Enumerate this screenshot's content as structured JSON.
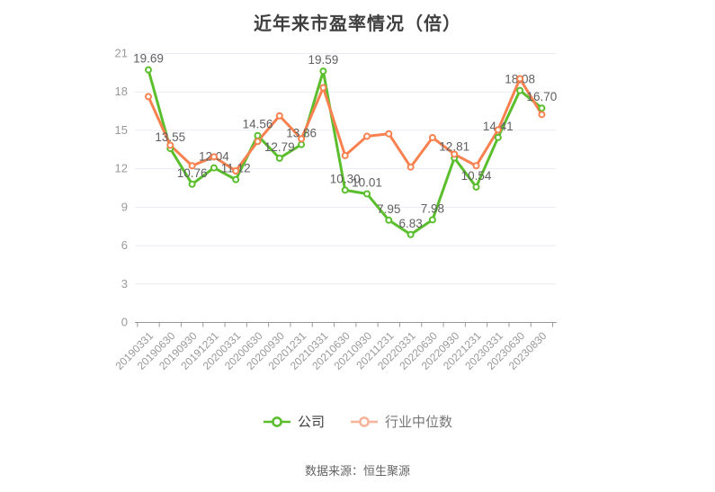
{
  "title": "近年来市盈率情况（倍）",
  "footer": {
    "source_label": "数据来源：恒生聚源"
  },
  "legend": {
    "items": [
      {
        "label": "公司",
        "icon": "line-circle-icon",
        "icon_color": "#5bbe2d",
        "text_color": "#404040"
      },
      {
        "label": "行业中位数",
        "icon": "line-circle-icon",
        "icon_color": "#f8b49a",
        "text_color": "#787878"
      }
    ]
  },
  "chart_data": {
    "type": "line",
    "title": "近年来市盈率情况（倍）",
    "categories": [
      "20190331",
      "20190630",
      "20190930",
      "20191231",
      "20200331",
      "20200630",
      "20200930",
      "20201231",
      "20210331",
      "20210630",
      "20210930",
      "20211231",
      "20220331",
      "20220630",
      "20220930",
      "20221231",
      "20230331",
      "20230630",
      "20230830"
    ],
    "series": [
      {
        "name": "公司",
        "color": "#5bbe2d",
        "show_labels": true,
        "values": [
          19.69,
          13.55,
          10.76,
          12.04,
          11.12,
          14.56,
          12.79,
          13.86,
          19.59,
          10.3,
          10.01,
          7.95,
          6.83,
          7.98,
          12.81,
          10.54,
          14.41,
          18.08,
          16.7
        ]
      },
      {
        "name": "行业中位数",
        "color": "#f98150",
        "show_labels": false,
        "values": [
          17.6,
          13.8,
          12.2,
          12.9,
          11.8,
          14.1,
          16.1,
          14.3,
          18.3,
          13.0,
          14.5,
          14.7,
          12.1,
          14.4,
          13.1,
          12.2,
          15.0,
          19.0,
          16.2
        ]
      }
    ],
    "ylim": [
      0,
      21
    ],
    "yticks": [
      0,
      3,
      6,
      9,
      12,
      15,
      18,
      21
    ],
    "grid": true,
    "legend_position": "bottom",
    "x_label_rotation": -45,
    "colors": {
      "grid_line": "#e8ebf1",
      "axis_line": "#999999",
      "axis_label": "#999999",
      "data_label": "#606060",
      "marker_fill": "#ffffff"
    }
  }
}
